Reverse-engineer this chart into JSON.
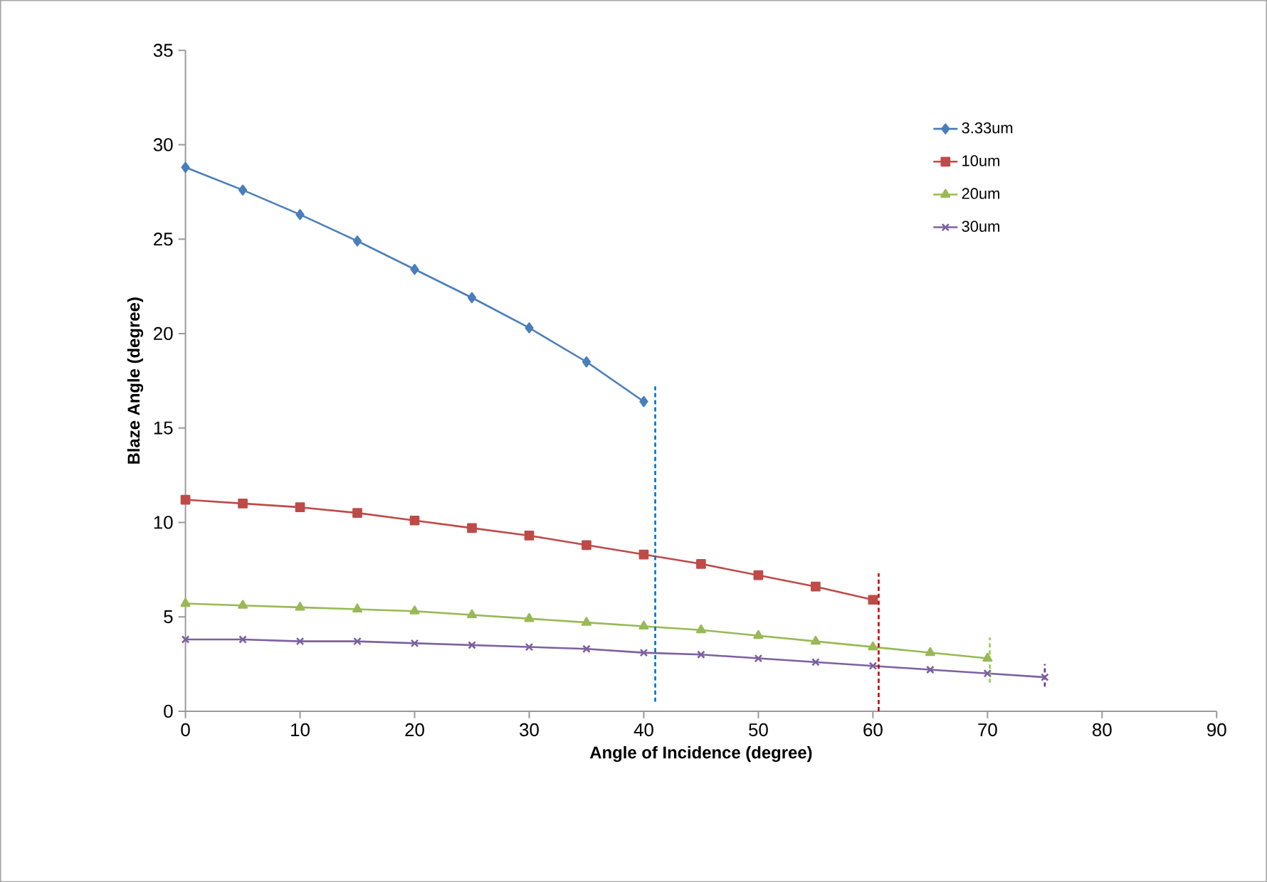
{
  "chart_data": {
    "type": "line",
    "xlabel": "Angle of Incidence (degree)",
    "ylabel": "Blaze Angle (degree)",
    "xlim": [
      0,
      90
    ],
    "xticks": [
      0,
      10,
      20,
      30,
      40,
      50,
      60,
      70,
      80,
      90
    ],
    "ylim": [
      0,
      35
    ],
    "yticks": [
      0,
      5,
      10,
      15,
      20,
      25,
      30,
      35
    ],
    "grid": false,
    "legend": "top right",
    "series": [
      {
        "name": "3.33um",
        "color": "#4a7ebb",
        "marker": "diamond",
        "x": [
          0,
          5,
          10,
          15,
          20,
          25,
          30,
          35,
          40
        ],
        "values": [
          28.8,
          27.6,
          26.3,
          24.9,
          23.4,
          21.9,
          20.3,
          18.5,
          16.4
        ]
      },
      {
        "name": "10um",
        "color": "#be4b48",
        "marker": "square",
        "x": [
          0,
          5,
          10,
          15,
          20,
          25,
          30,
          35,
          40,
          45,
          50,
          55,
          60
        ],
        "values": [
          11.2,
          11.0,
          10.8,
          10.5,
          10.1,
          9.7,
          9.3,
          8.8,
          8.3,
          7.8,
          7.2,
          6.6,
          5.9
        ]
      },
      {
        "name": "20um",
        "color": "#98b954",
        "marker": "triangle",
        "x": [
          0,
          5,
          10,
          15,
          20,
          25,
          30,
          35,
          40,
          45,
          50,
          55,
          60,
          65,
          70
        ],
        "values": [
          5.7,
          5.6,
          5.5,
          5.4,
          5.3,
          5.1,
          4.9,
          4.7,
          4.5,
          4.3,
          4.0,
          3.7,
          3.4,
          3.1,
          2.8
        ]
      },
      {
        "name": "30um",
        "color": "#7d60a0",
        "marker": "cross",
        "x": [
          0,
          5,
          10,
          15,
          20,
          25,
          30,
          35,
          40,
          45,
          50,
          55,
          60,
          65,
          70,
          75
        ],
        "values": [
          3.8,
          3.8,
          3.7,
          3.7,
          3.6,
          3.5,
          3.4,
          3.3,
          3.1,
          3.0,
          2.8,
          2.6,
          2.4,
          2.2,
          2.0,
          1.8
        ]
      },
      {
        "color": "#0070c0",
        "marker": "none",
        "line_style": "dashed",
        "x": [
          41,
          41
        ],
        "values": [
          0.5,
          17.2
        ]
      },
      {
        "color": "#c00000",
        "marker": "none",
        "line_style": "dashed",
        "x": [
          60.5,
          60.5
        ],
        "values": [
          0,
          7.3
        ]
      },
      {
        "color": "#92d050",
        "marker": "none",
        "line_style": "dashed",
        "x": [
          70.2,
          70.2
        ],
        "values": [
          1.5,
          3.9
        ]
      },
      {
        "color": "#7030a0",
        "marker": "none",
        "line_style": "dashed",
        "x": [
          75,
          75
        ],
        "values": [
          1.3,
          2.5
        ]
      }
    ]
  }
}
